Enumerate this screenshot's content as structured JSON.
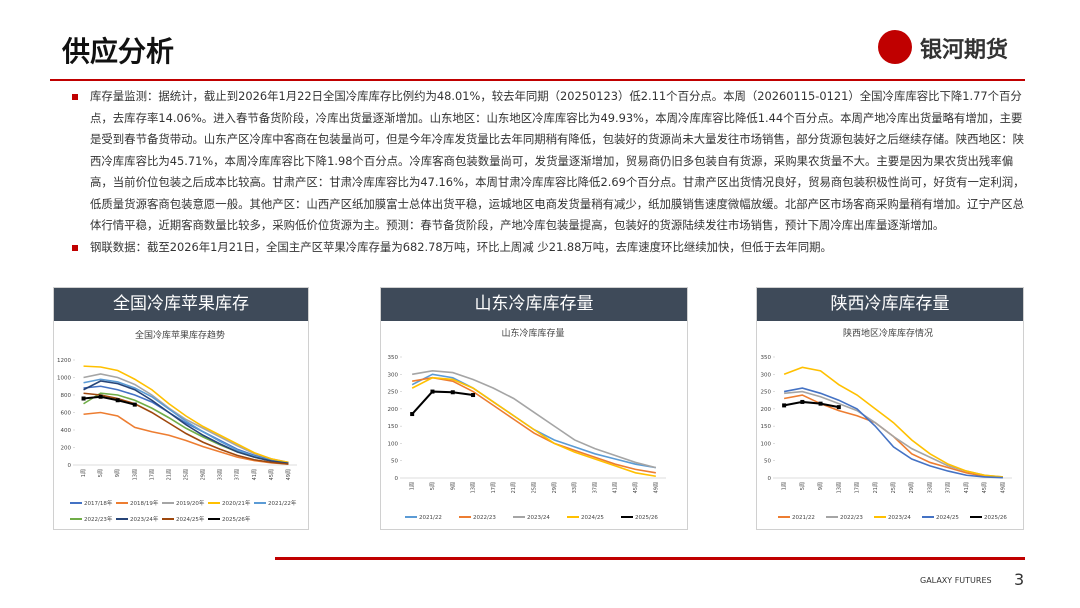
{
  "header": {
    "title": "供应分析",
    "brand": "银河期货"
  },
  "bullets": [
    "库存量监测：据统计，截止到2026年1月22日全国冷库库存比例约为48.01%，较去年同期（20250123）低2.11个百分点。本周（20260115-0121）全国冷库库容比下降1.77个百分点，去库存率14.06%。进入春节备货阶段，冷库出货量逐渐增加。山东地区：山东地区冷库库容比为49.93%，本周冷库库容比降低1.44个百分点。本周产地冷库出货量略有增加，主要是受到春节备货带动。山东产区冷库中客商在包装量尚可，但是今年冷库发货量比去年同期稍有降低，包装好的货源尚未大量发往市场销售，部分货源包装好之后继续存储。陕西地区：陕西冷库库容比为45.71%，本周冷库库容比下降1.98个百分点。冷库客商包装数量尚可，发货量逐渐增加，贸易商仍旧多包装自有货源，采购果农货量不大。主要是因为果农货出残率偏高，当前价位包装之后成本比较高。甘肃产区：甘肃冷库库容比为47.16%，本周甘肃冷库库容比降低2.69个百分点。甘肃产区出货情况良好，贸易商包装积极性尚可，好货有一定利润，低质量货源客商包装意愿一般。其他产区：山西产区纸加膜富士总体出货平稳，运城地区电商发货量稍有减少，纸加膜销售速度微幅放缓。北部产区市场客商采购量稍有增加。辽宁产区总体行情平稳，近期客商数量比较多，采购低价位货源为主。预测：春节备货阶段，产地冷库包装量提高，包装好的货源陆续发往市场销售，预计下周冷库出库量逐渐增加。",
    "钢联数据：截至2026年1月21日，全国主产区苹果冷库存量为682.78万吨，环比上周减 少21.88万吨，去库速度环比继续加快，但低于去年同期。"
  ],
  "panels": [
    {
      "heading": "全国冷库苹果库存"
    },
    {
      "heading": "山东冷库库存量"
    },
    {
      "heading": "陕西冷库库存量"
    }
  ],
  "chart_data": [
    {
      "type": "line",
      "title": "全国冷库苹果库存趋势",
      "categories": [
        "1周",
        "5周",
        "9周",
        "13周",
        "17周",
        "21周",
        "25周",
        "29周",
        "33周",
        "37周",
        "41周",
        "45周",
        "49周"
      ],
      "ylim": [
        0,
        1200
      ],
      "yticks": [
        0,
        200,
        400,
        600,
        800,
        1000,
        1200
      ],
      "series": [
        {
          "name": "2017/18年",
          "color": "#4472c4",
          "values": [
            880,
            900,
            860,
            800,
            720,
            600,
            480,
            380,
            280,
            180,
            110,
            60,
            30
          ]
        },
        {
          "name": "2018/19年",
          "color": "#ed7d31",
          "values": [
            580,
            600,
            560,
            430,
            380,
            340,
            280,
            210,
            150,
            90,
            50,
            25,
            10
          ]
        },
        {
          "name": "2019/20年",
          "color": "#a5a5a5",
          "values": [
            1000,
            1040,
            1000,
            920,
            800,
            650,
            520,
            420,
            320,
            220,
            130,
            70,
            30
          ]
        },
        {
          "name": "2020/21年",
          "color": "#ffc000",
          "values": [
            1130,
            1120,
            1080,
            980,
            860,
            700,
            560,
            440,
            340,
            240,
            140,
            70,
            30
          ]
        },
        {
          "name": "2021/22年",
          "color": "#5b9bd5",
          "values": [
            940,
            980,
            950,
            880,
            780,
            640,
            500,
            380,
            270,
            170,
            100,
            50,
            20
          ]
        },
        {
          "name": "2022/23年",
          "color": "#70ad47",
          "values": [
            700,
            820,
            800,
            740,
            650,
            540,
            420,
            320,
            230,
            150,
            90,
            45,
            20
          ]
        },
        {
          "name": "2023/24年",
          "color": "#264478",
          "values": [
            860,
            960,
            930,
            860,
            740,
            600,
            460,
            340,
            240,
            150,
            90,
            45,
            20
          ]
        },
        {
          "name": "2024/25年",
          "color": "#9e480e",
          "values": [
            820,
            800,
            760,
            700,
            600,
            480,
            360,
            260,
            180,
            110,
            60,
            30,
            10
          ]
        },
        {
          "name": "2025/26年",
          "color": "#000000",
          "marker": "square",
          "values": [
            760,
            780,
            740,
            690,
            null,
            null,
            null,
            null,
            null,
            null,
            null,
            null,
            null
          ]
        }
      ]
    },
    {
      "type": "line",
      "title": "山东冷库库存量",
      "categories": [
        "1周",
        "5周",
        "9周",
        "13周",
        "17周",
        "21周",
        "25周",
        "29周",
        "33周",
        "37周",
        "41周",
        "45周",
        "49周"
      ],
      "ylim": [
        0,
        350
      ],
      "yticks": [
        0,
        50,
        100,
        150,
        200,
        250,
        300,
        350
      ],
      "series": [
        {
          "name": "2021/22",
          "color": "#5b9bd5",
          "values": [
            270,
            300,
            290,
            260,
            220,
            180,
            140,
            110,
            90,
            70,
            55,
            40,
            30
          ]
        },
        {
          "name": "2022/23",
          "color": "#ed7d31",
          "values": [
            280,
            290,
            280,
            250,
            210,
            170,
            130,
            100,
            80,
            60,
            40,
            25,
            15
          ]
        },
        {
          "name": "2023/24",
          "color": "#a5a5a5",
          "values": [
            300,
            310,
            305,
            285,
            260,
            230,
            190,
            150,
            110,
            85,
            65,
            45,
            30
          ]
        },
        {
          "name": "2024/25",
          "color": "#ffc000",
          "values": [
            260,
            290,
            285,
            260,
            220,
            180,
            140,
            100,
            75,
            55,
            35,
            15,
            5
          ]
        },
        {
          "name": "2025/26",
          "color": "#000000",
          "marker": "square",
          "values": [
            185,
            250,
            248,
            240,
            null,
            null,
            null,
            null,
            null,
            null,
            null,
            null,
            null
          ]
        }
      ]
    },
    {
      "type": "line",
      "title": "陕西地区冷库库存情况",
      "categories": [
        "1周",
        "5周",
        "9周",
        "13周",
        "17周",
        "21周",
        "25周",
        "29周",
        "33周",
        "37周",
        "41周",
        "45周",
        "49周"
      ],
      "ylim": [
        0,
        350
      ],
      "yticks": [
        0,
        50,
        100,
        150,
        200,
        250,
        300,
        350
      ],
      "series": [
        {
          "name": "2021/22",
          "color": "#ed7d31",
          "values": [
            230,
            240,
            215,
            195,
            180,
            160,
            120,
            70,
            45,
            30,
            15,
            5,
            3
          ]
        },
        {
          "name": "2022/23",
          "color": "#a5a5a5",
          "values": [
            245,
            250,
            235,
            215,
            195,
            160,
            120,
            85,
            60,
            35,
            20,
            8,
            3
          ]
        },
        {
          "name": "2023/24",
          "color": "#ffc000",
          "values": [
            300,
            320,
            310,
            270,
            240,
            200,
            160,
            110,
            70,
            40,
            20,
            8,
            3
          ]
        },
        {
          "name": "2024/25",
          "color": "#4472c4",
          "values": [
            250,
            260,
            245,
            225,
            200,
            150,
            90,
            55,
            35,
            20,
            8,
            3,
            1
          ]
        },
        {
          "name": "2025/26",
          "color": "#000000",
          "marker": "square",
          "values": [
            210,
            220,
            215,
            205,
            null,
            null,
            null,
            null,
            null,
            null,
            null,
            null,
            null
          ]
        }
      ]
    }
  ],
  "footer": {
    "brand": "GALAXY FUTURES",
    "page": 3
  }
}
